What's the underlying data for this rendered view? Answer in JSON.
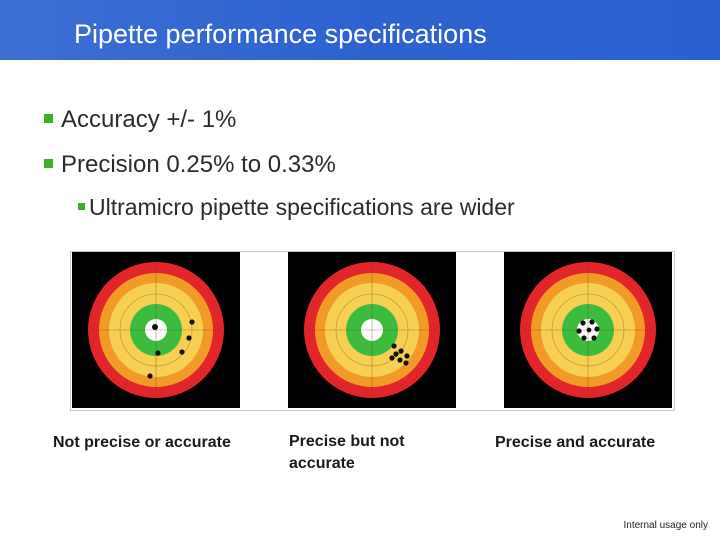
{
  "slide": {
    "title": "Pipette performance specifications",
    "bullets": [
      {
        "text": "Accuracy  +/- 1%"
      },
      {
        "text": "Precision 0.25% to 0.33%"
      }
    ],
    "sub_bullets": [
      {
        "text": "Ultramicro pipette specifications are wider"
      }
    ],
    "targets": [
      {
        "caption": "Not precise or accurate"
      },
      {
        "caption": "Precise but not accurate"
      },
      {
        "caption": "Precise and accurate"
      }
    ],
    "footer": "Internal usage only"
  },
  "colors": {
    "title_bar": "#2f63cf",
    "bullet_mark": "#3fae2a",
    "ring_red": "#e0262b",
    "ring_orange": "#f29a27",
    "ring_yellow": "#f7cf52",
    "ring_green": "#3dbb3f",
    "center": "#ffffff",
    "shot": "#111111"
  }
}
